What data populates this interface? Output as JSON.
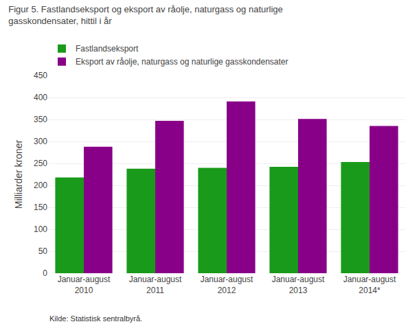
{
  "chart_data": {
    "type": "bar",
    "title": "Figur 5. Fastlandseksport og eksport av råolje, naturgass og naturlige\ngasskondensater, hittil i år",
    "ylabel": "Milliarder kroner",
    "categories": [
      "Januar-august\n2010",
      "Januar-august\n2011",
      "Januar-august\n2012",
      "Januar-august\n2013",
      "Januar-august\n2014*"
    ],
    "series": [
      {
        "name": "Fastlandseksport",
        "color": "#1a9a1a",
        "values": [
          218,
          238,
          240,
          242,
          253
        ]
      },
      {
        "name": "Eksport av råolje, naturgass og naturlige gasskondensater",
        "color": "#880088",
        "values": [
          288,
          347,
          391,
          351,
          335
        ]
      }
    ],
    "ylim": [
      0,
      450
    ],
    "yticks": [
      0,
      50,
      100,
      150,
      200,
      250,
      300,
      350,
      400,
      450
    ],
    "grid": true,
    "legend": "upper left",
    "annotations": [
      "Kilde: Statistisk sentralbyrå."
    ]
  }
}
